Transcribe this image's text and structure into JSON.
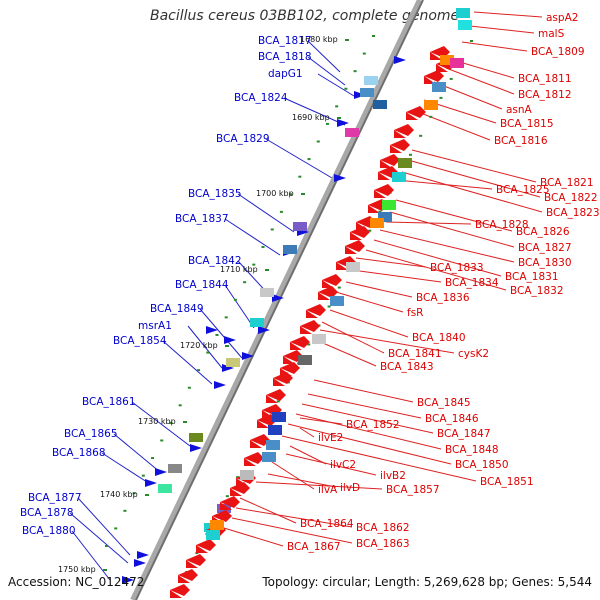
{
  "title": "Bacillus cereus 03BB102, complete genome",
  "footer": {
    "accession": "Accession: NC_012472",
    "summary": "Topology: circular; Length: 5,269,628 bp; Genes: 5,544"
  },
  "colors": {
    "left_label": "#0000cc",
    "right_label": "#dd0000",
    "backbone": "#888888"
  },
  "kbp_markers": [
    "1680 kbp",
    "1690 kbp",
    "1700 kbp",
    "1710 kbp",
    "1720 kbp",
    "1730 kbp",
    "1740 kbp",
    "1750 kbp"
  ],
  "left_labels": [
    "BCA_1817",
    "BCA_1818",
    "dapG1",
    "BCA_1824",
    "BCA_1829",
    "BCA_1835",
    "BCA_1837",
    "BCA_1842",
    "BCA_1844",
    "BCA_1849",
    "msrA1",
    "BCA_1854",
    "BCA_1861",
    "BCA_1865",
    "BCA_1868",
    "BCA_1877",
    "BCA_1878",
    "BCA_1880"
  ],
  "right_labels": [
    "aspA2",
    "malS",
    "BCA_1809",
    "BCA_1811",
    "BCA_1812",
    "asnA",
    "BCA_1815",
    "BCA_1816",
    "BCA_1821",
    "BCA_1822",
    "BCA_1823",
    "BCA_1825",
    "BCA_1826",
    "BCA_1827",
    "BCA_1828",
    "BCA_1830",
    "BCA_1831",
    "BCA_1832",
    "BCA_1833",
    "BCA_1834",
    "BCA_1836",
    "fsR",
    "BCA_1840",
    "BCA_1841",
    "cysK2",
    "BCA_1843",
    "BCA_1845",
    "BCA_1846",
    "BCA_1847",
    "BCA_1848",
    "BCA_1850",
    "BCA_1851",
    "BCA_1852",
    "ilvE2",
    "ilvC2",
    "ilvB2",
    "ilvA",
    "ilvD",
    "BCA_1857",
    "BCA_1864",
    "BCA_1862",
    "BCA_1863",
    "BCA_1867"
  ]
}
